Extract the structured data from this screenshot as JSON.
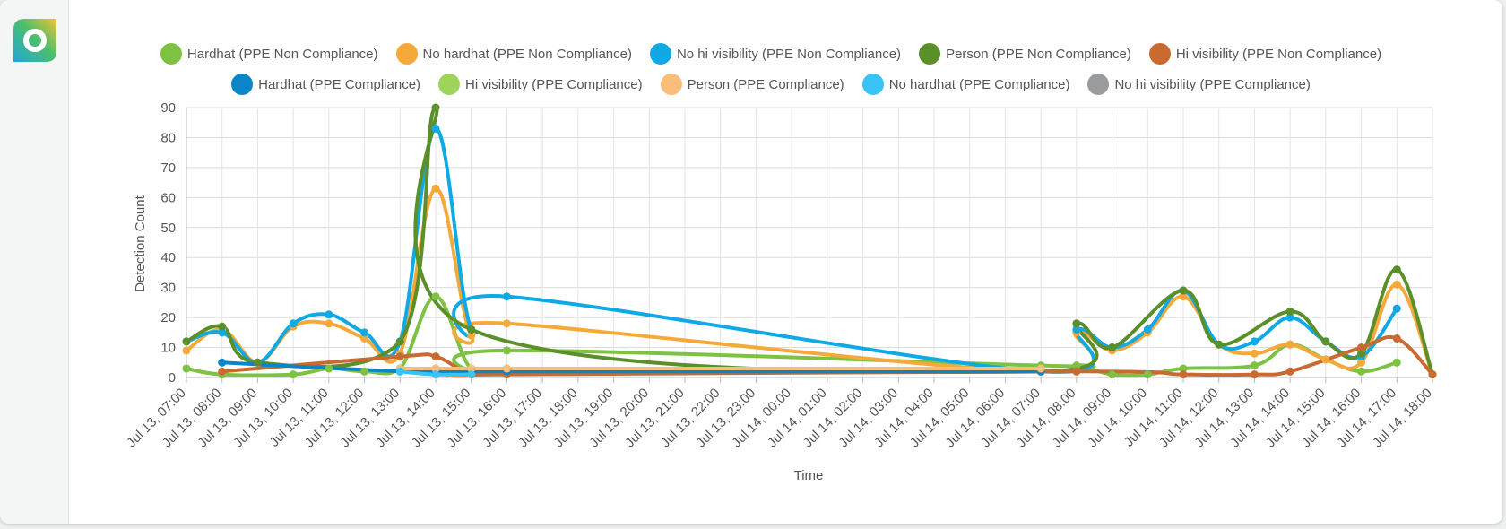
{
  "chart_data": {
    "type": "line",
    "xlabel": "Time",
    "ylabel": "Detection Count",
    "ylim": [
      0,
      90
    ],
    "yticks": [
      0,
      10,
      20,
      30,
      40,
      50,
      60,
      70,
      80,
      90
    ],
    "grid": true,
    "legend_position": "top",
    "x_ticks": [
      "Jul 13, 07:00",
      "Jul 13, 08:00",
      "Jul 13, 09:00",
      "Jul 13, 10:00",
      "Jul 13, 11:00",
      "Jul 13, 12:00",
      "Jul 13, 13:00",
      "Jul 13, 14:00",
      "Jul 13, 15:00",
      "Jul 13, 16:00",
      "Jul 13, 17:00",
      "Jul 13, 18:00",
      "Jul 13, 19:00",
      "Jul 13, 20:00",
      "Jul 13, 21:00",
      "Jul 13, 22:00",
      "Jul 13, 23:00",
      "Jul 14, 00:00",
      "Jul 14, 01:00",
      "Jul 14, 02:00",
      "Jul 14, 03:00",
      "Jul 14, 04:00",
      "Jul 14, 05:00",
      "Jul 14, 06:00",
      "Jul 14, 07:00",
      "Jul 14, 08:00",
      "Jul 14, 09:00",
      "Jul 14, 10:00",
      "Jul 14, 11:00",
      "Jul 14, 12:00",
      "Jul 14, 13:00",
      "Jul 14, 14:00",
      "Jul 14, 15:00",
      "Jul 14, 16:00",
      "Jul 14, 17:00",
      "Jul 14, 18:00"
    ],
    "series": [
      {
        "name": "Hardhat (PPE Non Compliance)",
        "color": "#7dc242",
        "legend_row": 1,
        "points": [
          [
            "Jul 13, 07:00",
            3
          ],
          [
            "Jul 13, 08:00",
            1
          ],
          [
            "Jul 13, 10:00",
            1
          ],
          [
            "Jul 13, 11:00",
            3
          ],
          [
            "Jul 13, 12:00",
            2
          ],
          [
            "Jul 13, 13:00",
            3
          ],
          [
            "Jul 13, 14:00",
            27
          ],
          [
            "Jul 13, 15:00",
            3
          ],
          [
            "Jul 13, 16:00",
            9
          ],
          [
            "Jul 14, 07:00",
            4
          ],
          [
            "Jul 14, 08:00",
            4
          ],
          [
            "Jul 14, 09:00",
            1
          ],
          [
            "Jul 14, 10:00",
            1
          ],
          [
            "Jul 14, 11:00",
            3
          ],
          [
            "Jul 14, 13:00",
            4
          ],
          [
            "Jul 14, 14:00",
            11
          ],
          [
            "Jul 14, 15:00",
            6
          ],
          [
            "Jul 14, 16:00",
            2
          ],
          [
            "Jul 14, 17:00",
            5
          ]
        ]
      },
      {
        "name": "No hardhat (PPE Non Compliance)",
        "color": "#f6a93b",
        "legend_row": 1,
        "points": [
          [
            "Jul 13, 07:00",
            9
          ],
          [
            "Jul 13, 08:00",
            16
          ],
          [
            "Jul 13, 09:00",
            5
          ],
          [
            "Jul 13, 10:00",
            17
          ],
          [
            "Jul 13, 11:00",
            18
          ],
          [
            "Jul 13, 12:00",
            13
          ],
          [
            "Jul 13, 13:00",
            8
          ],
          [
            "Jul 13, 14:00",
            63
          ],
          [
            "Jul 13, 15:00",
            14
          ],
          [
            "Jul 13, 16:00",
            18
          ],
          [
            "Jul 14, 07:00",
            2
          ],
          [
            "Jul 14, 08:00",
            15
          ],
          [
            "Jul 14, 09:00",
            9
          ],
          [
            "Jul 14, 10:00",
            15
          ],
          [
            "Jul 14, 11:00",
            27
          ],
          [
            "Jul 14, 12:00",
            11
          ],
          [
            "Jul 14, 13:00",
            8
          ],
          [
            "Jul 14, 14:00",
            11
          ],
          [
            "Jul 14, 15:00",
            6
          ],
          [
            "Jul 14, 16:00",
            5
          ],
          [
            "Jul 14, 17:00",
            31
          ],
          [
            "Jul 14, 18:00",
            1
          ]
        ]
      },
      {
        "name": "No hi visibility (PPE Non Compliance)",
        "color": "#0fa9e6",
        "legend_row": 1,
        "points": [
          [
            "Jul 13, 07:00",
            12
          ],
          [
            "Jul 13, 08:00",
            15
          ],
          [
            "Jul 13, 09:00",
            5
          ],
          [
            "Jul 13, 10:00",
            18
          ],
          [
            "Jul 13, 11:00",
            21
          ],
          [
            "Jul 13, 12:00",
            15
          ],
          [
            "Jul 13, 13:00",
            12
          ],
          [
            "Jul 13, 14:00",
            83
          ],
          [
            "Jul 13, 15:00",
            16
          ],
          [
            "Jul 13, 16:00",
            27
          ],
          [
            "Jul 14, 07:00",
            2
          ],
          [
            "Jul 14, 08:00",
            16
          ],
          [
            "Jul 14, 09:00",
            10
          ],
          [
            "Jul 14, 10:00",
            16
          ],
          [
            "Jul 14, 11:00",
            29
          ],
          [
            "Jul 14, 12:00",
            11
          ],
          [
            "Jul 14, 13:00",
            12
          ],
          [
            "Jul 14, 14:00",
            20
          ],
          [
            "Jul 14, 15:00",
            12
          ],
          [
            "Jul 14, 16:00",
            7
          ],
          [
            "Jul 14, 17:00",
            23
          ]
        ]
      },
      {
        "name": "Person (PPE Non Compliance)",
        "color": "#5a8f29",
        "legend_row": 1,
        "points": [
          [
            "Jul 13, 07:00",
            12
          ],
          [
            "Jul 13, 08:00",
            17
          ],
          [
            "Jul 13, 09:00",
            5
          ],
          [
            "Jul 13, 13:00",
            12
          ],
          [
            "Jul 13, 14:00",
            90
          ],
          [
            "Jul 13, 15:00",
            16
          ],
          [
            "Jul 14, 07:00",
            2
          ],
          [
            "Jul 14, 08:00",
            18
          ],
          [
            "Jul 14, 09:00",
            10
          ],
          [
            "Jul 14, 11:00",
            29
          ],
          [
            "Jul 14, 12:00",
            11
          ],
          [
            "Jul 14, 14:00",
            22
          ],
          [
            "Jul 14, 15:00",
            12
          ],
          [
            "Jul 14, 16:00",
            8
          ],
          [
            "Jul 14, 17:00",
            36
          ],
          [
            "Jul 14, 18:00",
            1
          ]
        ]
      },
      {
        "name": "Hi visibility (PPE Non Compliance)",
        "color": "#c96a30",
        "legend_row": 1,
        "points": [
          [
            "Jul 13, 08:00",
            2
          ],
          [
            "Jul 13, 13:00",
            7
          ],
          [
            "Jul 13, 14:00",
            7
          ],
          [
            "Jul 13, 15:00",
            1
          ],
          [
            "Jul 13, 16:00",
            1
          ],
          [
            "Jul 14, 08:00",
            2
          ],
          [
            "Jul 14, 11:00",
            1
          ],
          [
            "Jul 14, 13:00",
            1
          ],
          [
            "Jul 14, 14:00",
            2
          ],
          [
            "Jul 14, 16:00",
            10
          ],
          [
            "Jul 14, 17:00",
            13
          ],
          [
            "Jul 14, 18:00",
            1
          ]
        ]
      },
      {
        "name": "Hardhat (PPE Compliance)",
        "color": "#0a86c7",
        "legend_row": 2,
        "points": [
          [
            "Jul 13, 08:00",
            5
          ],
          [
            "Jul 13, 13:00",
            2
          ],
          [
            "Jul 13, 14:00",
            2
          ],
          [
            "Jul 13, 15:00",
            2
          ],
          [
            "Jul 13, 16:00",
            2
          ],
          [
            "Jul 14, 07:00",
            2
          ]
        ]
      },
      {
        "name": "Hi visibility (PPE Compliance)",
        "color": "#9ed35c",
        "legend_row": 2,
        "points": [
          [
            "Jul 13, 13:00",
            3
          ],
          [
            "Jul 13, 14:00",
            3
          ]
        ]
      },
      {
        "name": "Person (PPE Compliance)",
        "color": "#f9bd7a",
        "legend_row": 2,
        "points": [
          [
            "Jul 13, 13:00",
            3
          ],
          [
            "Jul 13, 14:00",
            3
          ],
          [
            "Jul 13, 15:00",
            3
          ],
          [
            "Jul 13, 16:00",
            3
          ],
          [
            "Jul 14, 07:00",
            3
          ]
        ]
      },
      {
        "name": "No hardhat (PPE Compliance)",
        "color": "#38c2f6",
        "legend_row": 2,
        "points": [
          [
            "Jul 13, 13:00",
            2
          ],
          [
            "Jul 13, 14:00",
            1
          ],
          [
            "Jul 13, 15:00",
            1
          ]
        ]
      },
      {
        "name": "No hi visibility (PPE Compliance)",
        "color": "#9a9b9d",
        "legend_row": 2,
        "points": []
      }
    ]
  }
}
